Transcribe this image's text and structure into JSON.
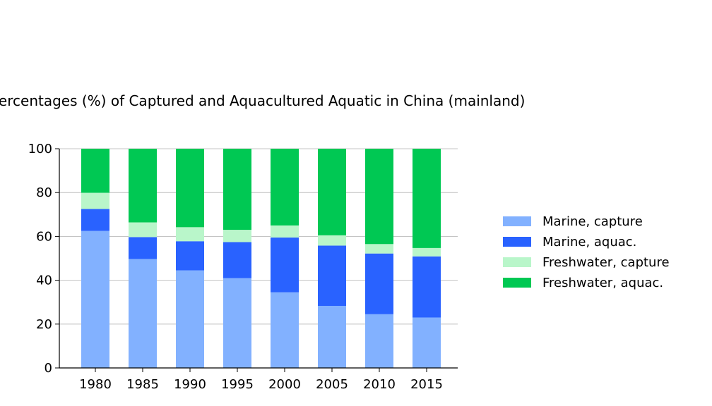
{
  "chart_data": {
    "type": "bar",
    "stacked": true,
    "title": "Percentages (%) of Captured and Aquacultured Aquatic in China (mainland)",
    "xlabel": "",
    "ylabel": "",
    "categories": [
      "1980",
      "1985",
      "1990",
      "1995",
      "2000",
      "2005",
      "2010",
      "2015"
    ],
    "ylim": [
      0,
      100
    ],
    "yticks": [
      0,
      20,
      40,
      60,
      80,
      100
    ],
    "grid": "horizontal",
    "legend_position": "right",
    "series": [
      {
        "name": "Marine, capture",
        "color": "#82b1ff",
        "values": [
          62.5,
          49.7,
          44.5,
          41.0,
          34.5,
          28.3,
          24.5,
          23.0
        ]
      },
      {
        "name": "Marine, aquac.",
        "color": "#2962ff",
        "values": [
          10.0,
          10.0,
          13.3,
          16.4,
          25.0,
          27.5,
          27.7,
          27.9
        ]
      },
      {
        "name": "Freshwater, capture",
        "color": "#b9f6ca",
        "values": [
          7.4,
          6.7,
          6.4,
          5.6,
          5.5,
          4.7,
          4.3,
          3.8
        ]
      },
      {
        "name": "Freshwater, aquac.",
        "color": "#00c853",
        "values": [
          20.1,
          33.6,
          35.8,
          37.0,
          35.0,
          39.5,
          43.5,
          45.3
        ]
      }
    ]
  }
}
